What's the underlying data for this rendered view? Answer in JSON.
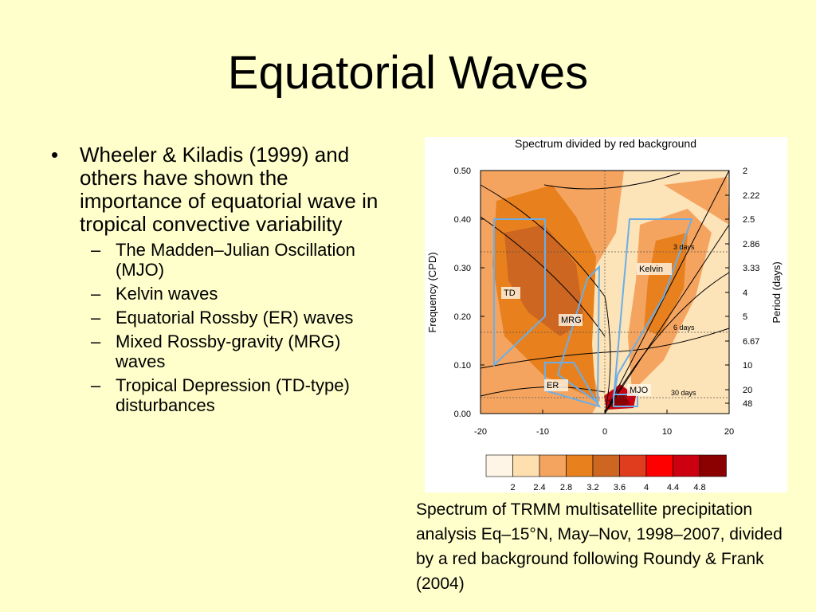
{
  "title": "Equatorial Waves",
  "bullets": [
    {
      "text": "Wheeler & Kiladis (1999) and others have shown the importance of equatorial wave in tropical convective variability",
      "subitems": [
        "The Madden–Julian Oscillation (MJO)",
        "Kelvin waves",
        "Equatorial Rossby (ER) waves",
        "Mixed Rossby-gravity (MRG) waves",
        "Tropical Depression (TD-type) disturbances"
      ]
    }
  ],
  "figure": {
    "title": "Spectrum divided by red background",
    "y_label": "Frequency (CPD)",
    "y2_label": "Period (days)",
    "y_ticks": [
      "0.50",
      "0.40",
      "0.30",
      "0.20",
      "0.10",
      "0.00"
    ],
    "x_ticks": [
      "-20",
      "-10",
      "0",
      "10",
      "20"
    ],
    "y2_ticks": [
      "2",
      "2.22",
      "2.5",
      "2.86",
      "3.33",
      "4",
      "5",
      "6.67",
      "10",
      "20",
      "48"
    ],
    "regions": [
      "TD",
      "MRG",
      "ER",
      "MJO",
      "Kelvin"
    ],
    "period_lines": [
      "3 days",
      "6 days",
      "30 days"
    ],
    "colorbar_labels": [
      "2",
      "2.4",
      "2.8",
      "3.2",
      "3.6",
      "4",
      "4.4",
      "4.8"
    ]
  },
  "caption": "Spectrum of TRMM multisatellite precipitation analysis Eq–15°N, May–Nov, 1998–2007, divided by a red background following Roundy & Frank (2004)"
}
